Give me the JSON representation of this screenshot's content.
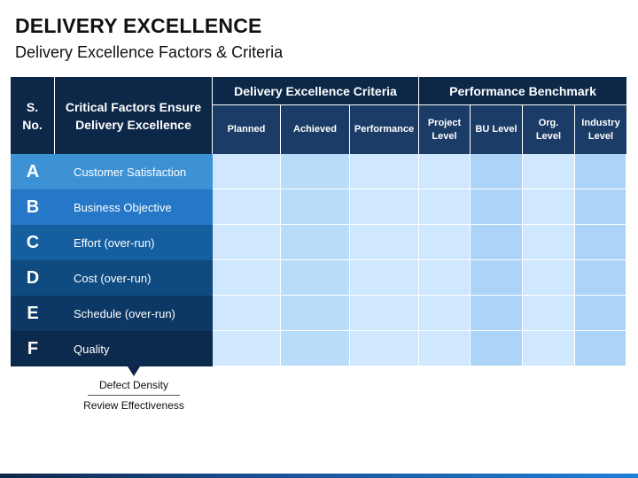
{
  "slide": {
    "title": "DELIVERY EXCELLENCE",
    "subtitle": "Delivery Excellence Factors & Criteria"
  },
  "table": {
    "sno_header": "S. No.",
    "factor_header": "Critical Factors Ensure Delivery Excellence",
    "criteria_group": "Delivery Excellence Criteria",
    "benchmark_group": "Performance Benchmark",
    "criteria_columns": [
      "Planned",
      "Achieved",
      "Performance"
    ],
    "benchmark_columns": [
      "Project Level",
      "BU Level",
      "Org. Level",
      "Industry Level"
    ],
    "rows": [
      {
        "letter": "A",
        "factor": "Customer Satisfaction",
        "color": "#3d92d6"
      },
      {
        "letter": "B",
        "factor": "Business Objective",
        "color": "#2577c7"
      },
      {
        "letter": "C",
        "factor": "Effort (over-run)",
        "color": "#155e9f"
      },
      {
        "letter": "D",
        "factor": "Cost (over-run)",
        "color": "#0f4b80"
      },
      {
        "letter": "E",
        "factor": "Schedule (over-run)",
        "color": "#0d3865"
      },
      {
        "letter": "F",
        "factor": "Quality",
        "color": "#0b2a4d"
      }
    ],
    "cell_colors": {
      "light": "#cfe7ff",
      "mid": "#b9dcfb",
      "bench": "#acd4f7"
    }
  },
  "quality_notes": [
    "Defect Density",
    "Review Effectiveness"
  ]
}
